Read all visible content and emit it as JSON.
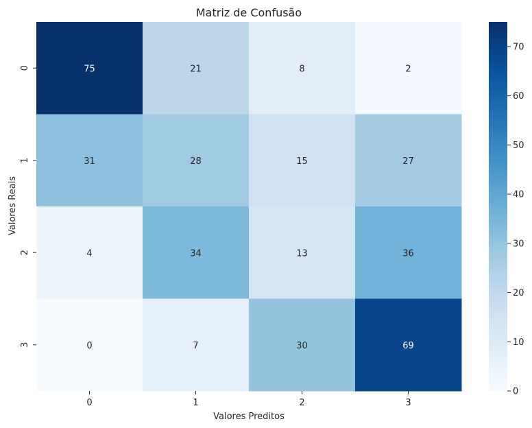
{
  "chart_data": {
    "type": "heatmap",
    "title": "Matriz de Confusão",
    "xlabel": "Valores Preditos",
    "ylabel": "Valores Reais",
    "x_categories": [
      "0",
      "1",
      "2",
      "3"
    ],
    "y_categories": [
      "0",
      "1",
      "2",
      "3"
    ],
    "values": [
      [
        75,
        21,
        8,
        2
      ],
      [
        31,
        28,
        15,
        27
      ],
      [
        4,
        34,
        13,
        36
      ],
      [
        0,
        7,
        30,
        69
      ]
    ],
    "colormap": "Blues",
    "vmin": 0,
    "vmax": 75,
    "colorbar_ticks": [
      0,
      10,
      20,
      30,
      40,
      50,
      60,
      70
    ]
  }
}
